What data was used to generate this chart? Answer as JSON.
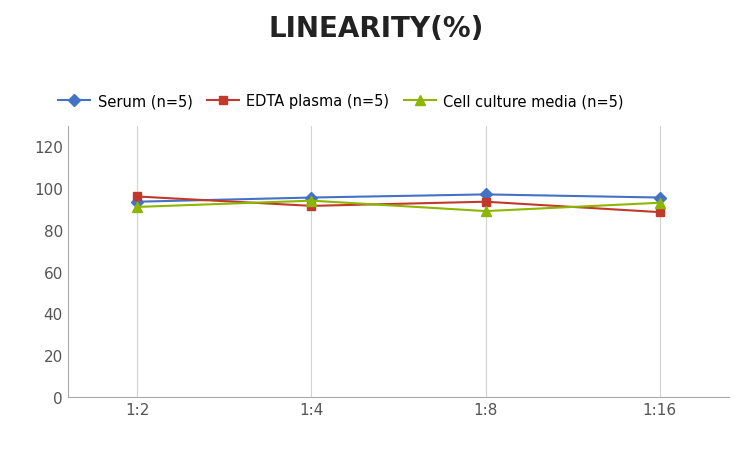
{
  "title": "LINEARITY(%)",
  "x_labels": [
    "1:2",
    "1:4",
    "1:8",
    "1:16"
  ],
  "x_positions": [
    0,
    1,
    2,
    3
  ],
  "series": [
    {
      "label": "Serum (n=5)",
      "values": [
        93.5,
        95.5,
        97.0,
        95.5
      ],
      "color": "#4472C4",
      "marker": "D",
      "marker_size": 6,
      "linewidth": 1.5
    },
    {
      "label": "EDTA plasma (n=5)",
      "values": [
        96.0,
        91.5,
        93.5,
        88.5
      ],
      "color": "#C0392B",
      "marker": "s",
      "marker_size": 6,
      "linewidth": 1.5
    },
    {
      "label": "Cell culture media (n=5)",
      "values": [
        91.0,
        94.0,
        89.0,
        93.0
      ],
      "color": "#8DB600",
      "marker": "^",
      "marker_size": 7,
      "linewidth": 1.5
    }
  ],
  "ylim": [
    0,
    130
  ],
  "yticks": [
    0,
    20,
    40,
    60,
    80,
    100,
    120
  ],
  "grid_color": "#D3D3D3",
  "background_color": "#FFFFFF",
  "title_fontsize": 20,
  "legend_fontsize": 10.5,
  "tick_fontsize": 11
}
